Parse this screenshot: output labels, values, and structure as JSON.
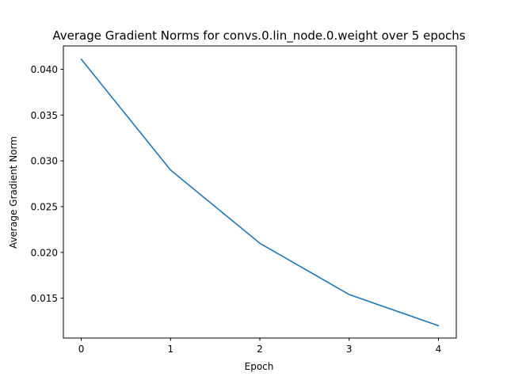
{
  "chart_data": {
    "type": "line",
    "title": "Average Gradient Norms for convs.0.lin_node.0.weight over 5 epochs",
    "xlabel": "Epoch",
    "ylabel": "Average Gradient Norm",
    "x": [
      0,
      1,
      2,
      3,
      4
    ],
    "series": [
      {
        "values": [
          0.0411,
          0.029,
          0.021,
          0.0154,
          0.012
        ],
        "color": "#1f77b4"
      }
    ],
    "xlim": [
      -0.2,
      4.2
    ],
    "ylim": [
      0.01065,
      0.04255
    ],
    "xticks": [
      0,
      1,
      2,
      3,
      4
    ],
    "xtick_labels": [
      "0",
      "1",
      "2",
      "3",
      "4"
    ],
    "yticks": [
      0.015,
      0.02,
      0.025,
      0.03,
      0.035,
      0.04
    ],
    "ytick_labels": [
      "0.015",
      "0.020",
      "0.025",
      "0.030",
      "0.035",
      "0.040"
    ],
    "grid": false,
    "legend": "none"
  }
}
